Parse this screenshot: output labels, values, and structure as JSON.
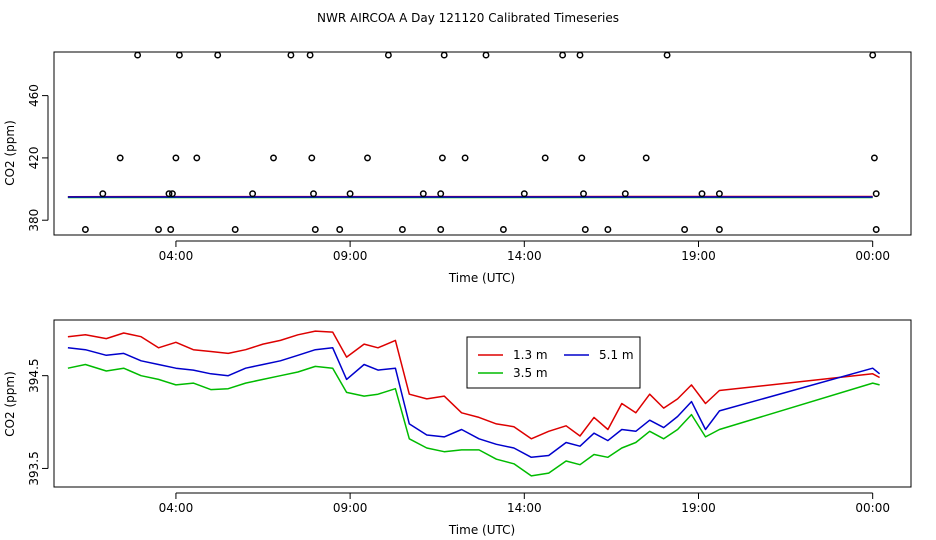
{
  "figure_title": "NWR AIRCOA A  Day 121120  Calibrated Timeseries",
  "colors": {
    "1.3 m": "#dd0000",
    "3.5 m": "#00bb00",
    "5.1 m": "#0000cc",
    "points": "#000000"
  },
  "chart_data": [
    {
      "type": "scatter",
      "title": "",
      "xlabel": "Time (UTC)",
      "ylabel": "CO2 (ppm)",
      "xlim": [
        0.5,
        25.1
      ],
      "ylim": [
        370.5,
        488
      ],
      "x_ticks": [
        {
          "value": 4,
          "label": "04:00"
        },
        {
          "value": 9,
          "label": "09:00"
        },
        {
          "value": 14,
          "label": "14:00"
        },
        {
          "value": 19,
          "label": "19:00"
        },
        {
          "value": 24,
          "label": "00:00"
        }
      ],
      "y_ticks": [
        {
          "value": 380,
          "label": "380"
        },
        {
          "value": 420,
          "label": "420"
        },
        {
          "value": 460,
          "label": "460"
        }
      ],
      "points": [
        [
          1.4,
          374
        ],
        [
          1.9,
          397
        ],
        [
          2.4,
          420
        ],
        [
          2.9,
          486
        ],
        [
          3.5,
          374
        ],
        [
          3.8,
          397
        ],
        [
          4.1,
          486
        ],
        [
          4.0,
          420
        ],
        [
          3.9,
          397
        ],
        [
          3.85,
          374
        ],
        [
          4.6,
          420
        ],
        [
          5.2,
          486
        ],
        [
          5.7,
          374
        ],
        [
          6.2,
          397
        ],
        [
          6.8,
          420
        ],
        [
          7.3,
          486
        ],
        [
          7.85,
          486
        ],
        [
          7.9,
          420
        ],
        [
          7.95,
          397
        ],
        [
          8.0,
          374
        ],
        [
          8.7,
          374
        ],
        [
          9.0,
          397
        ],
        [
          9.5,
          420
        ],
        [
          10.1,
          486
        ],
        [
          10.5,
          374
        ],
        [
          11.1,
          397
        ],
        [
          11.7,
          486
        ],
        [
          11.65,
          420
        ],
        [
          11.6,
          397
        ],
        [
          11.6,
          374
        ],
        [
          12.3,
          420
        ],
        [
          12.9,
          486
        ],
        [
          13.4,
          374
        ],
        [
          14.0,
          397
        ],
        [
          14.6,
          420
        ],
        [
          15.1,
          486
        ],
        [
          15.6,
          486
        ],
        [
          15.65,
          420
        ],
        [
          15.7,
          397
        ],
        [
          15.75,
          374
        ],
        [
          16.4,
          374
        ],
        [
          16.9,
          397
        ],
        [
          17.5,
          420
        ],
        [
          18.1,
          486
        ],
        [
          18.6,
          374
        ],
        [
          19.1,
          397
        ],
        [
          19.6,
          397
        ],
        [
          19.6,
          374
        ],
        [
          24.0,
          486
        ],
        [
          24.05,
          420
        ],
        [
          24.1,
          397
        ],
        [
          24.1,
          374
        ]
      ],
      "series": [
        {
          "name": "1.3 m",
          "x": [
            0.9,
            24.0
          ],
          "values": [
            395.1,
            395.2
          ]
        },
        {
          "name": "3.5 m",
          "x": [
            0.9,
            24.0
          ],
          "values": [
            394.6,
            394.6
          ]
        },
        {
          "name": "5.1 m",
          "x": [
            0.9,
            24.0
          ],
          "values": [
            394.9,
            394.9
          ]
        }
      ]
    },
    {
      "type": "line",
      "title": "",
      "xlabel": "Time (UTC)",
      "ylabel": "CO2 (ppm)",
      "xlim": [
        0.5,
        25.1
      ],
      "ylim": [
        393.3,
        395.1
      ],
      "x_ticks": [
        {
          "value": 4,
          "label": "04:00"
        },
        {
          "value": 9,
          "label": "09:00"
        },
        {
          "value": 14,
          "label": "14:00"
        },
        {
          "value": 19,
          "label": "19:00"
        },
        {
          "value": 24,
          "label": "00:00"
        }
      ],
      "y_ticks": [
        {
          "value": 393.5,
          "label": "393.5"
        },
        {
          "value": 394.5,
          "label": "394.5"
        }
      ],
      "legend": {
        "position": "top-center",
        "entries": [
          "1.3 m",
          "3.5 m",
          "5.1 m"
        ]
      },
      "series": [
        {
          "name": "1.3 m",
          "x": [
            0.9,
            1.4,
            2.0,
            2.5,
            3.0,
            3.5,
            4.0,
            4.5,
            5.0,
            5.5,
            6.0,
            6.5,
            7.0,
            7.5,
            8.0,
            8.5,
            8.9,
            9.4,
            9.8,
            10.3,
            10.7,
            11.2,
            11.7,
            12.2,
            12.7,
            13.2,
            13.7,
            14.2,
            14.7,
            15.2,
            15.6,
            16.0,
            16.4,
            16.8,
            17.2,
            17.6,
            18.0,
            18.4,
            18.8,
            19.2,
            19.6,
            24.0,
            24.2
          ],
          "values": [
            394.92,
            394.94,
            394.9,
            394.96,
            394.92,
            394.8,
            394.86,
            394.78,
            394.76,
            394.74,
            394.78,
            394.84,
            394.88,
            394.94,
            394.98,
            394.97,
            394.7,
            394.84,
            394.8,
            394.88,
            394.3,
            394.25,
            394.28,
            394.1,
            394.05,
            393.98,
            393.95,
            393.82,
            393.9,
            393.96,
            393.85,
            394.05,
            393.92,
            394.2,
            394.1,
            394.3,
            394.15,
            394.25,
            394.4,
            394.2,
            394.34,
            394.52,
            394.48
          ]
        },
        {
          "name": "3.5 m",
          "x": [
            0.9,
            1.4,
            2.0,
            2.5,
            3.0,
            3.5,
            4.0,
            4.5,
            5.0,
            5.5,
            6.0,
            6.5,
            7.0,
            7.5,
            8.0,
            8.5,
            8.9,
            9.4,
            9.8,
            10.3,
            10.7,
            11.2,
            11.7,
            12.2,
            12.7,
            13.2,
            13.7,
            14.2,
            14.7,
            15.2,
            15.6,
            16.0,
            16.4,
            16.8,
            17.2,
            17.6,
            18.0,
            18.4,
            18.8,
            19.2,
            19.6,
            24.0,
            24.2
          ],
          "values": [
            394.58,
            394.62,
            394.55,
            394.58,
            394.5,
            394.46,
            394.4,
            394.42,
            394.35,
            394.36,
            394.42,
            394.46,
            394.5,
            394.54,
            394.6,
            394.58,
            394.32,
            394.28,
            394.3,
            394.36,
            393.82,
            393.72,
            393.68,
            393.7,
            393.7,
            393.6,
            393.55,
            393.42,
            393.45,
            393.58,
            393.54,
            393.65,
            393.62,
            393.72,
            393.78,
            393.9,
            393.82,
            393.92,
            394.08,
            393.84,
            393.92,
            394.42,
            394.4
          ]
        },
        {
          "name": "5.1 m",
          "x": [
            0.9,
            1.4,
            2.0,
            2.5,
            3.0,
            3.5,
            4.0,
            4.5,
            5.0,
            5.5,
            6.0,
            6.5,
            7.0,
            7.5,
            8.0,
            8.5,
            8.9,
            9.4,
            9.8,
            10.3,
            10.7,
            11.2,
            11.7,
            12.2,
            12.7,
            13.2,
            13.7,
            14.2,
            14.7,
            15.2,
            15.6,
            16.0,
            16.4,
            16.8,
            17.2,
            17.6,
            18.0,
            18.4,
            18.8,
            19.2,
            19.6,
            24.0,
            24.2
          ],
          "values": [
            394.8,
            394.78,
            394.72,
            394.74,
            394.66,
            394.62,
            394.58,
            394.56,
            394.52,
            394.5,
            394.58,
            394.62,
            394.66,
            394.72,
            394.78,
            394.8,
            394.46,
            394.62,
            394.56,
            394.58,
            393.98,
            393.86,
            393.84,
            393.92,
            393.82,
            393.76,
            393.72,
            393.62,
            393.64,
            393.78,
            393.74,
            393.88,
            393.8,
            393.92,
            393.9,
            394.02,
            393.94,
            394.06,
            394.22,
            393.92,
            394.12,
            394.58,
            394.52
          ]
        }
      ]
    }
  ]
}
